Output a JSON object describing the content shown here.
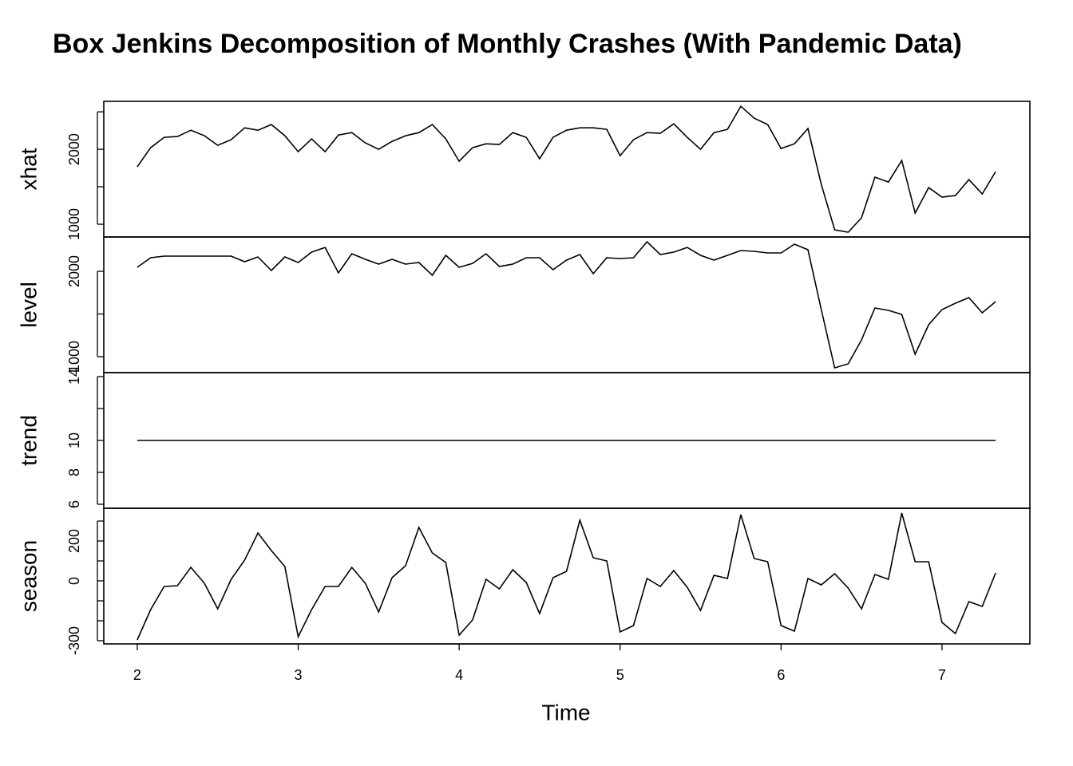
{
  "chart_data": {
    "type": "line",
    "title": "Box Jenkins Decomposition of Monthly Crashes (With Pandemic Data)",
    "xlabel": "Time",
    "color": "#000000",
    "xlim": [
      1.792,
      7.546
    ],
    "xticks": [
      2,
      3,
      4,
      5,
      6,
      7
    ],
    "x": [
      2,
      2.083,
      2.167,
      2.25,
      2.333,
      2.417,
      2.5,
      2.583,
      2.667,
      2.75,
      2.833,
      2.917,
      3,
      3.083,
      3.167,
      3.25,
      3.333,
      3.417,
      3.5,
      3.583,
      3.667,
      3.75,
      3.833,
      3.917,
      4,
      4.083,
      4.167,
      4.25,
      4.333,
      4.417,
      4.5,
      4.583,
      4.667,
      4.75,
      4.833,
      4.917,
      5,
      5.083,
      5.167,
      5.25,
      5.333,
      5.417,
      5.5,
      5.583,
      5.667,
      5.75,
      5.833,
      5.917,
      6,
      6.083,
      6.167,
      6.25,
      6.333,
      6.417,
      6.5,
      6.583,
      6.667,
      6.75,
      6.833,
      6.917,
      7,
      7.083,
      7.167,
      7.25,
      7.333
    ],
    "panels": [
      {
        "ylabel": "xhat",
        "ylim": [
          830,
          2640
        ],
        "yticks": [
          1000,
          {
            "value": 1500,
            "label": null
          },
          2000,
          {
            "value": 2500,
            "label": null
          }
        ],
        "values": [
          1766,
          2021,
          2160,
          2170,
          2255,
          2181,
          2053,
          2128,
          2287,
          2255,
          2330,
          2181,
          1968,
          2138,
          1968,
          2191,
          2223,
          2085,
          2000,
          2106,
          2181,
          2223,
          2330,
          2138,
          1840,
          2021,
          2074,
          2064,
          2223,
          2160,
          1872,
          2160,
          2255,
          2287,
          2287,
          2266,
          1915,
          2128,
          2223,
          2213,
          2340,
          2160,
          2000,
          2223,
          2266,
          2574,
          2415,
          2330,
          2011,
          2074,
          2277,
          1532,
          926,
          894,
          1085,
          1628,
          1564,
          1851,
          1149,
          1489,
          1362,
          1383,
          1596,
          1404,
          1702
        ]
      },
      {
        "ylabel": "level",
        "ylim": [
          813,
          2402
        ],
        "yticks": [
          1000,
          {
            "value": 1500,
            "label": null
          },
          2000
        ],
        "values": [
          2047,
          2159,
          2178,
          2178,
          2178,
          2178,
          2178,
          2178,
          2112,
          2168,
          2009,
          2168,
          2103,
          2224,
          2280,
          1981,
          2206,
          2140,
          2084,
          2140,
          2084,
          2103,
          1953,
          2187,
          2047,
          2093,
          2206,
          2056,
          2084,
          2159,
          2159,
          2019,
          2131,
          2196,
          1972,
          2159,
          2150,
          2159,
          2346,
          2196,
          2224,
          2280,
          2187,
          2131,
          2187,
          2243,
          2234,
          2215,
          2215,
          2318,
          2252,
          1551,
          869,
          916,
          1196,
          1570,
          1542,
          1495,
          1028,
          1374,
          1551,
          1626,
          1692,
          1514,
          1645
        ]
      },
      {
        "ylabel": "trend",
        "ylim": [
          5.75,
          14.25
        ],
        "yticks": [
          6,
          8,
          10,
          {
            "value": 12,
            "label": null
          },
          14
        ],
        "values": [
          10,
          10,
          10,
          10,
          10,
          10,
          10,
          10,
          10,
          10,
          10,
          10,
          10,
          10,
          10,
          10,
          10,
          10,
          10,
          10,
          10,
          10,
          10,
          10,
          10,
          10,
          10,
          10,
          10,
          10,
          10,
          10,
          10,
          10,
          10,
          10,
          10,
          10,
          10,
          10,
          10,
          10,
          10,
          10,
          10,
          10,
          10,
          10,
          10,
          10,
          10,
          10,
          10,
          10,
          10,
          10,
          10,
          10,
          10,
          10,
          10,
          10,
          10,
          10,
          10
        ]
      },
      {
        "ylabel": "season",
        "ylim": [
          -316,
          364
        ],
        "yticks": [
          -300,
          {
            "value": -200,
            "label": null
          },
          {
            "value": -100,
            "label": null
          },
          0,
          {
            "value": 100,
            "label": null
          },
          200,
          {
            "value": 300,
            "label": null
          }
        ],
        "values": [
          -296,
          -144,
          -28,
          -24,
          68,
          -12,
          -140,
          8,
          104,
          240,
          152,
          72,
          -280,
          -144,
          -28,
          -28,
          68,
          -12,
          -156,
          16,
          76,
          268,
          140,
          92,
          -272,
          -196,
          8,
          -40,
          56,
          -8,
          -164,
          16,
          48,
          304,
          116,
          100,
          -256,
          -224,
          12,
          -28,
          52,
          -32,
          -148,
          28,
          12,
          332,
          112,
          96,
          -224,
          -252,
          12,
          -20,
          36,
          -36,
          -140,
          32,
          8,
          340,
          96,
          96,
          -208,
          -264,
          -104,
          -128,
          40
        ]
      }
    ]
  }
}
